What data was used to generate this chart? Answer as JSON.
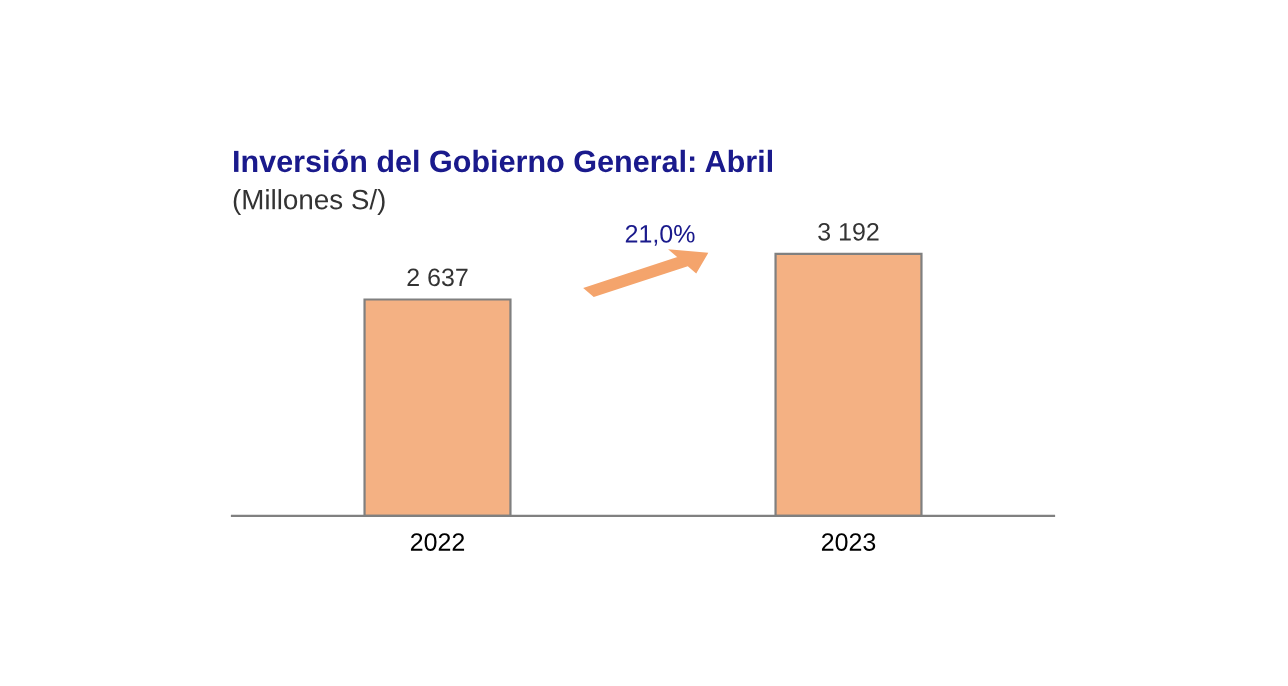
{
  "chart_data": {
    "type": "bar",
    "title": "Inversión del Gobierno General: Abril",
    "subtitle": "(Millones S/)",
    "categories": [
      "2022",
      "2023"
    ],
    "values": [
      2637,
      3192
    ],
    "value_labels": [
      "2 637",
      "3 192"
    ],
    "color": "#f4b183",
    "annotations": [
      "21,0%"
    ],
    "grid": false,
    "legend": false
  }
}
